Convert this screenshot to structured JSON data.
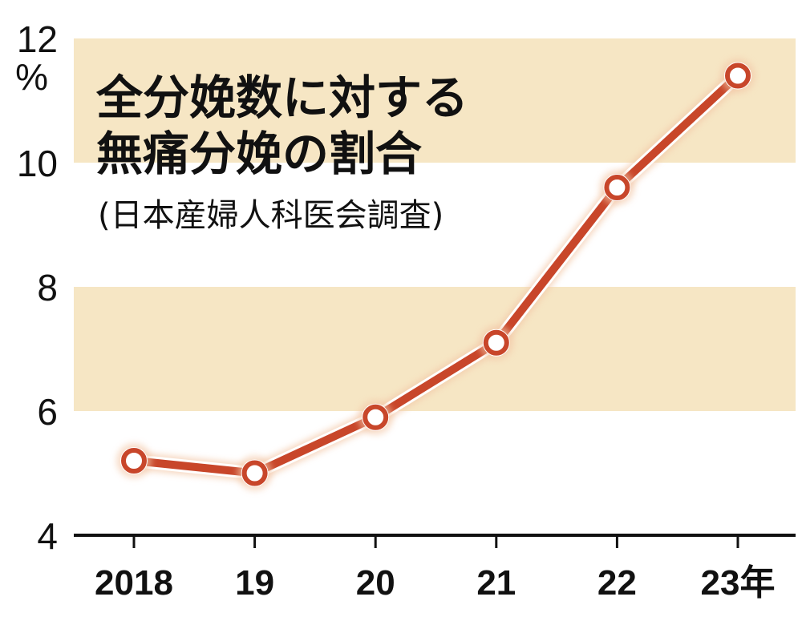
{
  "chart_data": {
    "type": "line",
    "title_lines": [
      "全分娩数に対する",
      "無痛分娩の割合"
    ],
    "source": "(日本産婦人科医会調査)",
    "x": [
      "2018",
      "19",
      "20",
      "21",
      "22",
      "23年"
    ],
    "series": [
      {
        "values": [
          5.2,
          5.0,
          5.9,
          7.1,
          9.6,
          11.4
        ]
      }
    ],
    "y_ticks": [
      "4",
      "6",
      "8",
      "10",
      "12"
    ],
    "y_unit": "%",
    "ylim": [
      4,
      12
    ],
    "bands": [
      [
        6,
        8
      ],
      [
        10,
        12
      ]
    ],
    "colors": {
      "line": "#c8462a",
      "band": "#f6e6c4",
      "axis": "#111111"
    }
  }
}
